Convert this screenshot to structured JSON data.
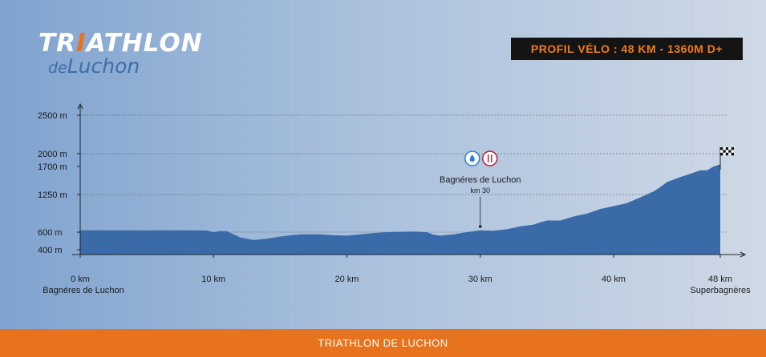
{
  "logo": {
    "line1_pre": "TR",
    "line1_i": "I",
    "line1_post": "ATHLON",
    "line2_de": "de",
    "line2_rest": "Luchon",
    "accent_color": "#e8731e",
    "blue_color": "#3d6ea8"
  },
  "header": {
    "title": "PROFIL VÉLO : 48 KM - 1360M D+"
  },
  "footer": {
    "text": "TRIATHLON DE LUCHON"
  },
  "chart_data": {
    "type": "area",
    "title": "",
    "xlabel": "",
    "ylabel": "",
    "xlim": [
      0,
      48
    ],
    "y_ticks": [
      {
        "value": 400,
        "label": "400 m"
      },
      {
        "value": 600,
        "label": "600 m"
      },
      {
        "value": 1250,
        "label": "1250 m"
      },
      {
        "value": 1700,
        "label": "1700 m"
      },
      {
        "value": 2000,
        "label": "2000 m"
      },
      {
        "value": 2500,
        "label": "2500 m"
      }
    ],
    "x_ticks": [
      {
        "value": 0,
        "label": "0 km",
        "sublabel": "Bagnéres de Luchon"
      },
      {
        "value": 10,
        "label": "10 km",
        "sublabel": ""
      },
      {
        "value": 20,
        "label": "20 km",
        "sublabel": ""
      },
      {
        "value": 30,
        "label": "30 km",
        "sublabel": ""
      },
      {
        "value": 40,
        "label": "40 km",
        "sublabel": ""
      },
      {
        "value": 48,
        "label": "48 km",
        "sublabel": "Superbagnères"
      }
    ],
    "gridlines": [
      600,
      1250,
      2000,
      2500
    ],
    "fill_color": "#3a6ba8",
    "points": [
      [
        0,
        630
      ],
      [
        4,
        630
      ],
      [
        8,
        630
      ],
      [
        9.5,
        628
      ],
      [
        10,
        600
      ],
      [
        10.5,
        620
      ],
      [
        11,
        615
      ],
      [
        12,
        540
      ],
      [
        13,
        510
      ],
      [
        14,
        525
      ],
      [
        15,
        550
      ],
      [
        16.5,
        575
      ],
      [
        18,
        575
      ],
      [
        19,
        565
      ],
      [
        20,
        560
      ],
      [
        21,
        575
      ],
      [
        22,
        590
      ],
      [
        23,
        600
      ],
      [
        24,
        605
      ],
      [
        25,
        610
      ],
      [
        26,
        600
      ],
      [
        26.5,
        570
      ],
      [
        27,
        560
      ],
      [
        28,
        575
      ],
      [
        29,
        600
      ],
      [
        30,
        630
      ],
      [
        31,
        625
      ],
      [
        32,
        650
      ],
      [
        33,
        700
      ],
      [
        34,
        730
      ],
      [
        34.5,
        770
      ],
      [
        35,
        800
      ],
      [
        36,
        800
      ],
      [
        37,
        870
      ],
      [
        38,
        920
      ],
      [
        39,
        1000
      ],
      [
        40,
        1050
      ],
      [
        41,
        1100
      ],
      [
        42,
        1200
      ],
      [
        43,
        1300
      ],
      [
        43.5,
        1370
      ],
      [
        44,
        1450
      ],
      [
        45,
        1530
      ],
      [
        46,
        1600
      ],
      [
        46.5,
        1640
      ],
      [
        47,
        1640
      ],
      [
        47.5,
        1700
      ],
      [
        48,
        1750
      ]
    ],
    "annotations": [
      {
        "x": 30,
        "title": "Bagnéres de Luchon",
        "subtitle": "km 30",
        "icons": [
          "water-drop-icon",
          "food-icon"
        ]
      }
    ],
    "finish_flag_x": 48
  }
}
